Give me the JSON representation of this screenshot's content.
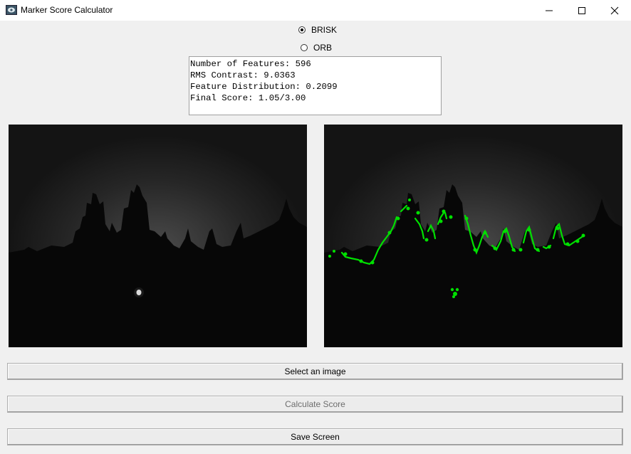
{
  "window": {
    "title": "Marker Score Calculator",
    "icon": "feather-app-icon",
    "controls": [
      "minimize-icon",
      "maximize-icon",
      "close-icon"
    ]
  },
  "algorithm": {
    "options": [
      {
        "label": "BRISK",
        "selected": true
      },
      {
        "label": "ORB",
        "selected": false
      }
    ]
  },
  "results": {
    "lines": [
      "Number of Features: 596",
      "RMS Contrast: 9.0363",
      "Feature Distribution: 0.2099",
      "Final Score: 1.05/3.00"
    ]
  },
  "images": {
    "original": "night-skyline-grayscale-image",
    "features": "night-skyline-with-green-keypoints-image",
    "keypoint_color": "#00e000"
  },
  "buttons": {
    "select": {
      "label": "Select an image",
      "enabled": true
    },
    "calculate": {
      "label": "Calculate Score",
      "enabled": false
    },
    "save": {
      "label": "Save Screen",
      "enabled": true
    }
  }
}
